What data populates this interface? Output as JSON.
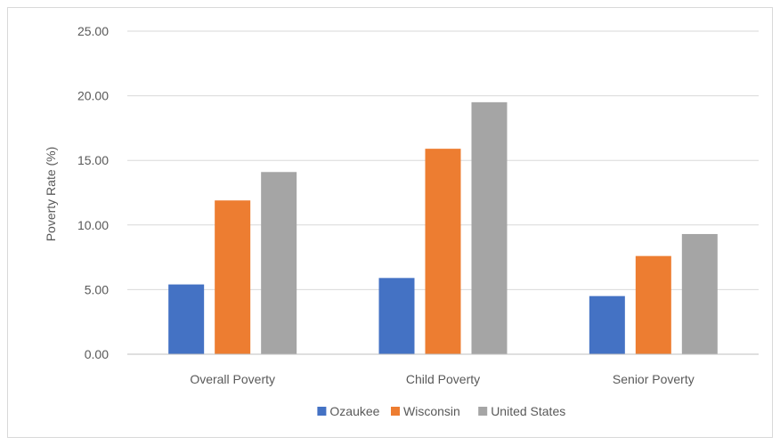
{
  "chart_data": {
    "type": "bar",
    "title": "",
    "xlabel": "",
    "ylabel": "Poverty Rate (%)",
    "ylim": [
      0,
      25
    ],
    "yticks": [
      "0.00",
      "5.00",
      "10.00",
      "15.00",
      "20.00",
      "25.00"
    ],
    "ytick_values": [
      0,
      5,
      10,
      15,
      20,
      25
    ],
    "grid": true,
    "legend_position": "bottom",
    "categories": [
      "Overall Poverty",
      "Child Poverty",
      "Senior Poverty"
    ],
    "series": [
      {
        "name": "Ozaukee",
        "color": "#4472c4",
        "values": [
          5.4,
          5.9,
          4.5
        ]
      },
      {
        "name": "Wisconsin",
        "color": "#ed7d31",
        "values": [
          11.9,
          15.9,
          7.6
        ]
      },
      {
        "name": "United States",
        "color": "#a5a5a5",
        "values": [
          14.1,
          19.5,
          9.3
        ]
      }
    ]
  }
}
